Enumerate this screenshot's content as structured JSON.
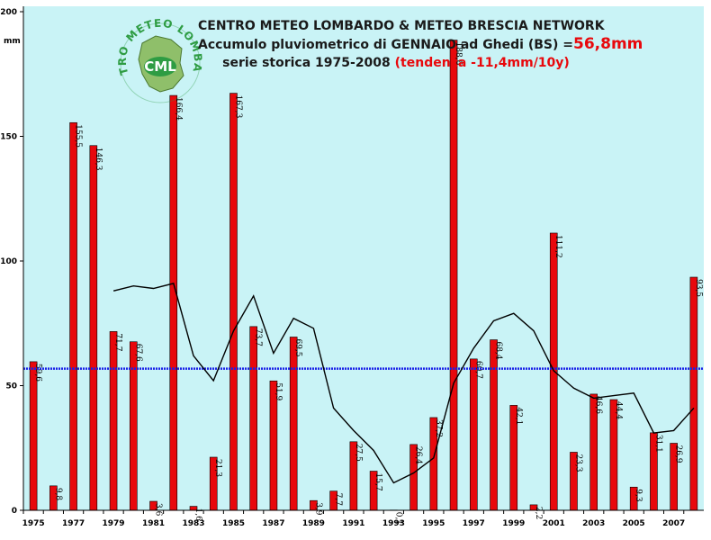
{
  "header": {
    "line1": "CENTRO METEO LOMBARDO & METEO BRESCIA NETWORK",
    "line2_prefix": "Accumulo pluviometrico di GENNAIO ad Ghedi (BS) =",
    "line2_value": "56,8mm",
    "line3_prefix": "serie storica 1975-2008 ",
    "line3_trend": "(tendenza -11,4mm/10y)"
  },
  "logo": {
    "ring_text": "CENTRO METEO LOMBARDO",
    "center_text": "CML"
  },
  "colors": {
    "plot_background": "#c9f3f6",
    "bar": "#e8080c",
    "average_line": "#1a20e8",
    "moving_average": "#000000",
    "logo_green": "#2e9c43"
  },
  "chart_data": {
    "type": "bar",
    "title": "CENTRO METEO LOMBARDO & METEO BRESCIA NETWORK",
    "ylabel": "mm",
    "ylim": [
      0,
      200
    ],
    "yticks": [
      0,
      50,
      100,
      150,
      200
    ],
    "xtick_labels": [
      "1975",
      "1977",
      "1979",
      "1981",
      "1983",
      "1985",
      "1987",
      "1989",
      "1991",
      "1993",
      "1995",
      "1997",
      "1999",
      "2001",
      "2003",
      "2005",
      "2007"
    ],
    "categories": [
      "1975",
      "1976",
      "1977",
      "1978",
      "1979",
      "1980",
      "1981",
      "1982",
      "1983",
      "1984",
      "1985",
      "1986",
      "1987",
      "1988",
      "1989",
      "1990",
      "1991",
      "1992",
      "1993",
      "1994",
      "1995",
      "1996",
      "1997",
      "1998",
      "1999",
      "2000",
      "2001",
      "2002",
      "2003",
      "2004",
      "2005",
      "2006",
      "2007",
      "2008"
    ],
    "series": [
      {
        "type": "bar",
        "values": [
          59.6,
          9.8,
          155.5,
          146.3,
          71.7,
          67.6,
          3.6,
          166.4,
          1.6,
          21.3,
          167.3,
          73.7,
          51.9,
          69.5,
          3.9,
          7.7,
          27.5,
          15.7,
          0.1,
          26.4,
          37.2,
          188.6,
          60.7,
          68.4,
          42.1,
          2.2,
          111.2,
          23.3,
          46.6,
          44.4,
          9.3,
          31.1,
          26.9,
          93.5
        ],
        "labels": [
          "59,6",
          "9,8",
          "155,5",
          "146,3",
          "71,7",
          "67,6",
          "3,6",
          "166,4",
          "1,6",
          "21,3",
          "167,3",
          "73,7",
          "51,9",
          "69,5",
          "3,9",
          "7,7",
          "27,5",
          "15,7",
          "0,1",
          "26,4",
          "37,2",
          "188,6",
          "60,7",
          "68,4",
          "42,1",
          "2,2",
          "111,2",
          "23,3",
          "46,6",
          "44,4",
          "9,3",
          "31,1",
          "26,9",
          "93,5"
        ]
      },
      {
        "type": "line",
        "values": [
          null,
          null,
          null,
          null,
          88,
          90,
          89,
          91,
          62,
          52,
          72,
          86,
          63,
          77,
          73,
          41,
          32,
          24,
          11,
          15,
          21,
          51,
          65,
          76,
          79,
          72,
          56,
          49,
          45,
          46,
          47,
          31,
          32,
          41
        ]
      },
      {
        "type": "hline",
        "value": 56.8
      }
    ],
    "grid": false,
    "legend": "none"
  }
}
